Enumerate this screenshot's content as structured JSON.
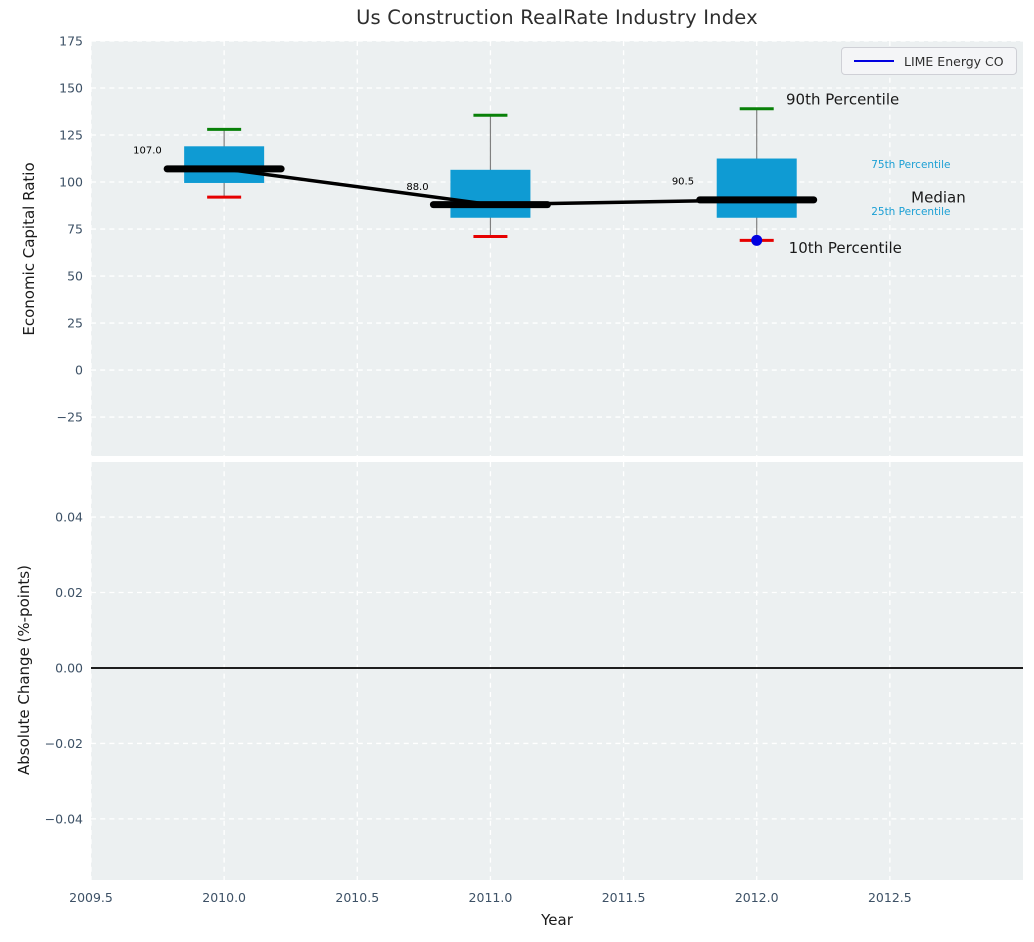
{
  "title": "Us Construction RealRate Industry Index",
  "legend": {
    "label": "LIME Energy CO",
    "line_color": "#0000e0",
    "position": "upper right"
  },
  "colors": {
    "figure_bg": "#ffffff",
    "plot_bg": "#ecf0f1",
    "grid": "#ffffff",
    "tick_label": "#3d5166",
    "axis_label": "#1a1a1a",
    "title": "#2e2e2e",
    "box_fill": "#0f9bd3",
    "whisker": "#808080",
    "cap_90th": "#088008",
    "cap_10th": "#e60000",
    "median_line": "#000000",
    "company_marker": "#0000e0",
    "percentile_label_blue": "#1a9fd4",
    "zero_line": "#000000"
  },
  "chart_data": [
    {
      "type": "boxplot",
      "title": "Us Construction RealRate Industry Index",
      "ylabel": "Economic Capital Ratio",
      "ylim": [
        -45.7,
        175
      ],
      "xlim": [
        2009.5,
        2013.0
      ],
      "grid": "white-dashed",
      "legend_entries": [
        {
          "label": "LIME Energy CO",
          "color": "#0000e0"
        }
      ],
      "yticks": [
        {
          "value": 175,
          "label": "175"
        },
        {
          "value": 150,
          "label": "150"
        },
        {
          "value": 125,
          "label": "125"
        },
        {
          "value": 100,
          "label": "100"
        },
        {
          "value": 75,
          "label": "75"
        },
        {
          "value": 50,
          "label": "50"
        },
        {
          "value": 25,
          "label": "25"
        },
        {
          "value": 0,
          "label": "0"
        },
        {
          "value": -25,
          "label": "−25"
        }
      ],
      "boxes": [
        {
          "x": 2010,
          "p10": 92,
          "p25": 99.5,
          "median": 107.0,
          "p75": 119,
          "p90": 128
        },
        {
          "x": 2011,
          "p10": 71,
          "p25": 81,
          "median": 88.0,
          "p75": 106.5,
          "p90": 135.5
        },
        {
          "x": 2012,
          "p10": 69,
          "p25": 81,
          "median": 90.5,
          "p75": 112.5,
          "p90": 139
        }
      ],
      "median_line": {
        "x": [
          2010,
          2011,
          2012
        ],
        "y": [
          107.0,
          88.0,
          90.5
        ]
      },
      "company_series": {
        "name": "LIME Energy CO",
        "points": [
          {
            "x": 2012,
            "y": 69
          }
        ]
      },
      "median_value_labels": [
        {
          "text": "107.0",
          "x": 2009.712,
          "y": 117
        },
        {
          "text": "88.0",
          "x": 2010.726,
          "y": 97.5
        },
        {
          "text": "90.5",
          "x": 2011.723,
          "y": 100.5
        }
      ],
      "percentile_labels": [
        {
          "text": "90th Percentile",
          "x": 2012.11,
          "y": 144,
          "size": 15,
          "color": "#1a1a1a"
        },
        {
          "text": "75th Percentile",
          "x": 2012.43,
          "y": 109.5,
          "size": 10.5,
          "color": "#1a9fd4"
        },
        {
          "text": "Median",
          "x": 2012.58,
          "y": 92,
          "size": 15,
          "color": "#1a1a1a"
        },
        {
          "text": "25th Percentile",
          "x": 2012.43,
          "y": 84.5,
          "size": 10.5,
          "color": "#1a9fd4"
        },
        {
          "text": "10th Percentile",
          "x": 2012.12,
          "y": 65,
          "size": 15,
          "color": "#1a1a1a"
        }
      ]
    },
    {
      "type": "line",
      "ylabel": "Absolute Change (%-points)",
      "xlabel": "Year",
      "ylim": [
        -0.0562,
        0.0546
      ],
      "xlim": [
        2009.5,
        2013.0
      ],
      "grid": "white-dashed",
      "zero_line": 0.0,
      "series": [],
      "yticks": [
        {
          "value": 0.04,
          "label": "0.04"
        },
        {
          "value": 0.02,
          "label": "0.02"
        },
        {
          "value": 0.0,
          "label": "0.00"
        },
        {
          "value": -0.02,
          "label": "−0.02"
        },
        {
          "value": -0.04,
          "label": "−0.04"
        }
      ],
      "xticks": [
        {
          "value": 2009.5,
          "label": "2009.5"
        },
        {
          "value": 2010.0,
          "label": "2010.0"
        },
        {
          "value": 2010.5,
          "label": "2010.5"
        },
        {
          "value": 2011.0,
          "label": "2011.0"
        },
        {
          "value": 2011.5,
          "label": "2011.5"
        },
        {
          "value": 2012.0,
          "label": "2012.0"
        },
        {
          "value": 2012.5,
          "label": "2012.5"
        }
      ]
    }
  ]
}
